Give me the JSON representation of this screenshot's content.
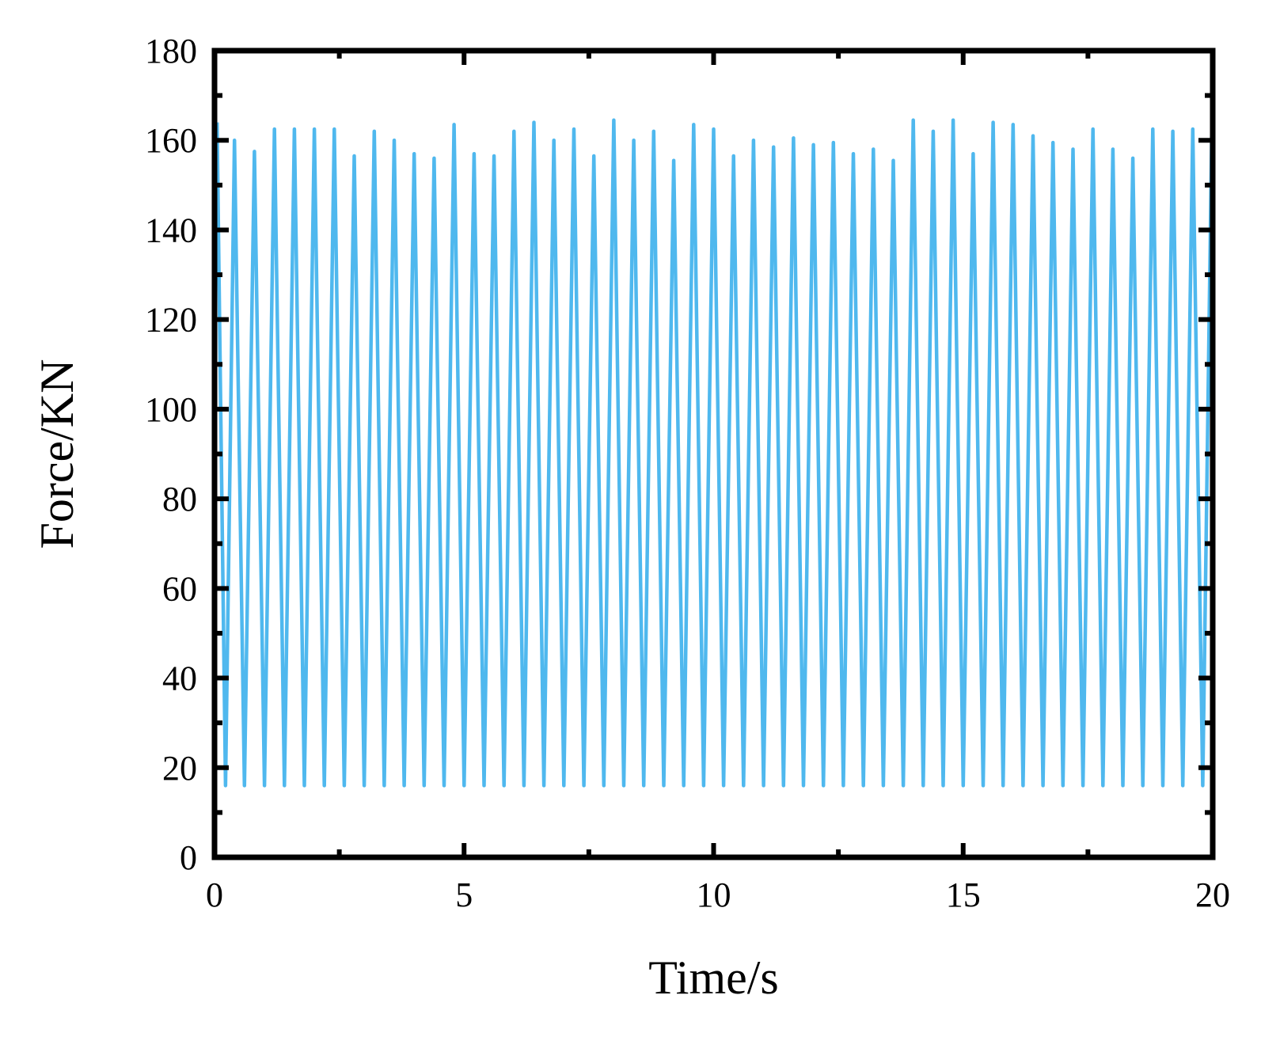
{
  "chart_data": {
    "type": "line",
    "title": "",
    "xlabel": "Time/s",
    "ylabel": "Force/KN",
    "xlim": [
      0,
      20
    ],
    "ylim": [
      0,
      180
    ],
    "x_ticks": [
      0,
      5,
      10,
      15,
      20
    ],
    "y_ticks": [
      0,
      20,
      40,
      60,
      80,
      100,
      120,
      140,
      160,
      180
    ],
    "grid": false,
    "legend": "none",
    "series": [
      {
        "color": "#4fb8ee",
        "x": [
          0.05,
          0.22,
          0.4,
          0.6,
          0.8,
          1.0,
          1.2,
          1.4,
          1.6,
          1.8,
          2.0,
          2.2,
          2.4,
          2.6,
          2.8,
          3.0,
          3.2,
          3.4,
          3.6,
          3.8,
          4.0,
          4.2,
          4.4,
          4.6,
          4.8,
          5.0,
          5.2,
          5.4,
          5.6,
          5.8,
          6.0,
          6.2,
          6.4,
          6.6,
          6.8,
          7.0,
          7.2,
          7.4,
          7.6,
          7.8,
          8.0,
          8.2,
          8.4,
          8.6,
          8.8,
          9.0,
          9.2,
          9.4,
          9.6,
          9.8,
          10.0,
          10.2,
          10.4,
          10.6,
          10.8,
          11.0,
          11.2,
          11.4,
          11.6,
          11.8,
          12.0,
          12.2,
          12.4,
          12.6,
          12.8,
          13.0,
          13.2,
          13.4,
          13.6,
          13.8,
          14.0,
          14.2,
          14.4,
          14.6,
          14.8,
          15.0,
          15.2,
          15.4,
          15.6,
          15.8,
          16.0,
          16.2,
          16.4,
          16.6,
          16.8,
          17.0,
          17.2,
          17.4,
          17.6,
          17.8,
          18.0,
          18.2,
          18.4,
          18.6,
          18.8,
          19.0,
          19.2,
          19.4,
          19.6,
          19.8,
          19.98
        ],
        "y": [
          164,
          16,
          160,
          16,
          157.5,
          16,
          162.5,
          16,
          162.5,
          16,
          162.5,
          16,
          162.5,
          16,
          156.5,
          16,
          162,
          16,
          160,
          16,
          157,
          16,
          156,
          16,
          163.5,
          16,
          157,
          16,
          156.5,
          16,
          162,
          16,
          164,
          16,
          160,
          16,
          162.5,
          16,
          156.5,
          16,
          164.5,
          16,
          160,
          16,
          162,
          16,
          155.5,
          16,
          163.5,
          16,
          162.5,
          16,
          156.5,
          16,
          160,
          16,
          158.5,
          16,
          160.5,
          16,
          159,
          16,
          159.5,
          16,
          157,
          16,
          158,
          16,
          155.5,
          16,
          164.5,
          16,
          162,
          16,
          164.5,
          16,
          157,
          16,
          164,
          16,
          163.5,
          16,
          161,
          16,
          159.5,
          16,
          158,
          16,
          162.5,
          16,
          158,
          16,
          156,
          16,
          162.5,
          16,
          162,
          16,
          162.5,
          16,
          161
        ]
      }
    ]
  }
}
